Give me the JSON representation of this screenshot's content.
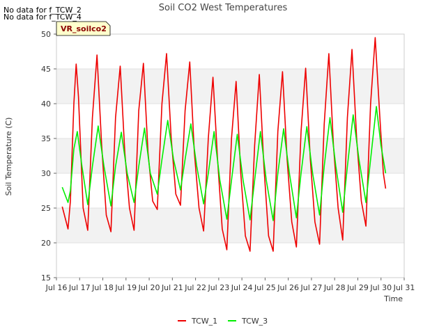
{
  "no_data_messages": [
    "No data for f_TCW_2",
    "No data for f_TCW_4"
  ],
  "site_label": "VR_soilco2",
  "chart_data": {
    "type": "line",
    "title": "Soil CO2 West Temperatures",
    "xlabel": "Time",
    "ylabel": "Soil Temperature (C)",
    "xlim": [
      16,
      31
    ],
    "ylim": [
      15,
      50
    ],
    "x_ticks": [
      16,
      17,
      18,
      19,
      20,
      21,
      22,
      23,
      24,
      25,
      26,
      27,
      28,
      29,
      30,
      31
    ],
    "x_tick_labels": [
      "Jul 16",
      "Jul 17",
      "Jul 18",
      "Jul 19",
      "Jul 20",
      "Jul 21",
      "Jul 22",
      "Jul 23",
      "Jul 24",
      "Jul 25",
      "Jul 26",
      "Jul 27",
      "Jul 28",
      "Jul 29",
      "Jul 30",
      "Jul 31"
    ],
    "y_ticks": [
      15,
      20,
      25,
      30,
      35,
      40,
      45,
      50
    ],
    "grid": true,
    "legend_position": "bottom-center",
    "series": [
      {
        "name": "TCW_1",
        "color": "#ee0000",
        "points": [
          [
            16.25,
            25.2
          ],
          [
            16.5,
            22.0
          ],
          [
            16.6,
            26.0
          ],
          [
            16.75,
            40.0
          ],
          [
            16.85,
            45.7
          ],
          [
            16.95,
            41.0
          ],
          [
            17.15,
            25.0
          ],
          [
            17.35,
            21.8
          ],
          [
            17.55,
            38.0
          ],
          [
            17.75,
            47.0
          ],
          [
            17.95,
            34.0
          ],
          [
            18.15,
            24.0
          ],
          [
            18.35,
            21.6
          ],
          [
            18.55,
            38.0
          ],
          [
            18.75,
            45.4
          ],
          [
            18.95,
            33.0
          ],
          [
            19.15,
            25.0
          ],
          [
            19.35,
            21.8
          ],
          [
            19.55,
            39.0
          ],
          [
            19.75,
            45.8
          ],
          [
            19.95,
            33.0
          ],
          [
            20.15,
            26.0
          ],
          [
            20.35,
            24.8
          ],
          [
            20.55,
            40.0
          ],
          [
            20.75,
            47.2
          ],
          [
            20.95,
            35.0
          ],
          [
            21.15,
            27.0
          ],
          [
            21.35,
            25.4
          ],
          [
            21.55,
            39.0
          ],
          [
            21.75,
            46.0
          ],
          [
            21.95,
            33.0
          ],
          [
            22.15,
            25.0
          ],
          [
            22.35,
            21.7
          ],
          [
            22.55,
            35.0
          ],
          [
            22.75,
            43.8
          ],
          [
            22.95,
            32.0
          ],
          [
            23.15,
            22.0
          ],
          [
            23.35,
            19.0
          ],
          [
            23.55,
            35.0
          ],
          [
            23.75,
            43.2
          ],
          [
            23.95,
            30.0
          ],
          [
            24.15,
            21.0
          ],
          [
            24.35,
            18.8
          ],
          [
            24.55,
            34.0
          ],
          [
            24.75,
            44.2
          ],
          [
            24.95,
            31.0
          ],
          [
            25.15,
            21.0
          ],
          [
            25.35,
            18.8
          ],
          [
            25.55,
            36.0
          ],
          [
            25.75,
            44.6
          ],
          [
            25.95,
            32.0
          ],
          [
            26.15,
            23.0
          ],
          [
            26.35,
            19.4
          ],
          [
            26.55,
            36.0
          ],
          [
            26.75,
            45.1
          ],
          [
            26.95,
            32.0
          ],
          [
            27.15,
            23.0
          ],
          [
            27.35,
            19.8
          ],
          [
            27.55,
            37.0
          ],
          [
            27.75,
            47.2
          ],
          [
            27.95,
            34.0
          ],
          [
            28.15,
            25.0
          ],
          [
            28.35,
            20.4
          ],
          [
            28.55,
            38.0
          ],
          [
            28.75,
            47.8
          ],
          [
            28.95,
            35.0
          ],
          [
            29.15,
            26.0
          ],
          [
            29.35,
            22.4
          ],
          [
            29.55,
            40.0
          ],
          [
            29.75,
            49.5
          ],
          [
            29.95,
            38.0
          ],
          [
            30.1,
            30.0
          ],
          [
            30.2,
            27.8
          ]
        ]
      },
      {
        "name": "TCW_3",
        "color": "#00ee00",
        "points": [
          [
            16.25,
            28.0
          ],
          [
            16.5,
            25.8
          ],
          [
            16.6,
            27.5
          ],
          [
            16.75,
            33.5
          ],
          [
            16.9,
            36.0
          ],
          [
            17.1,
            31.0
          ],
          [
            17.35,
            25.5
          ],
          [
            17.55,
            31.0
          ],
          [
            17.8,
            36.8
          ],
          [
            18.05,
            31.0
          ],
          [
            18.35,
            25.3
          ],
          [
            18.55,
            31.0
          ],
          [
            18.8,
            35.9
          ],
          [
            19.05,
            30.0
          ],
          [
            19.35,
            25.8
          ],
          [
            19.55,
            31.0
          ],
          [
            19.8,
            36.5
          ],
          [
            20.05,
            30.0
          ],
          [
            20.35,
            27.0
          ],
          [
            20.55,
            32.0
          ],
          [
            20.8,
            37.6
          ],
          [
            21.05,
            32.0
          ],
          [
            21.35,
            27.6
          ],
          [
            21.55,
            32.0
          ],
          [
            21.8,
            37.1
          ],
          [
            22.05,
            31.0
          ],
          [
            22.35,
            25.6
          ],
          [
            22.55,
            30.0
          ],
          [
            22.8,
            36.0
          ],
          [
            23.05,
            29.0
          ],
          [
            23.35,
            23.4
          ],
          [
            23.55,
            29.0
          ],
          [
            23.8,
            35.6
          ],
          [
            24.05,
            29.0
          ],
          [
            24.35,
            23.3
          ],
          [
            24.55,
            29.0
          ],
          [
            24.8,
            36.0
          ],
          [
            25.05,
            29.0
          ],
          [
            25.35,
            23.2
          ],
          [
            25.55,
            30.0
          ],
          [
            25.8,
            36.4
          ],
          [
            26.05,
            30.0
          ],
          [
            26.35,
            23.6
          ],
          [
            26.55,
            30.0
          ],
          [
            26.8,
            36.7
          ],
          [
            27.05,
            30.0
          ],
          [
            27.35,
            24.0
          ],
          [
            27.55,
            31.0
          ],
          [
            27.8,
            38.0
          ],
          [
            28.05,
            31.0
          ],
          [
            28.35,
            24.4
          ],
          [
            28.55,
            31.0
          ],
          [
            28.8,
            38.4
          ],
          [
            29.05,
            32.0
          ],
          [
            29.35,
            25.8
          ],
          [
            29.55,
            32.0
          ],
          [
            29.8,
            39.6
          ],
          [
            30.0,
            34.0
          ],
          [
            30.2,
            30.0
          ]
        ]
      }
    ]
  }
}
